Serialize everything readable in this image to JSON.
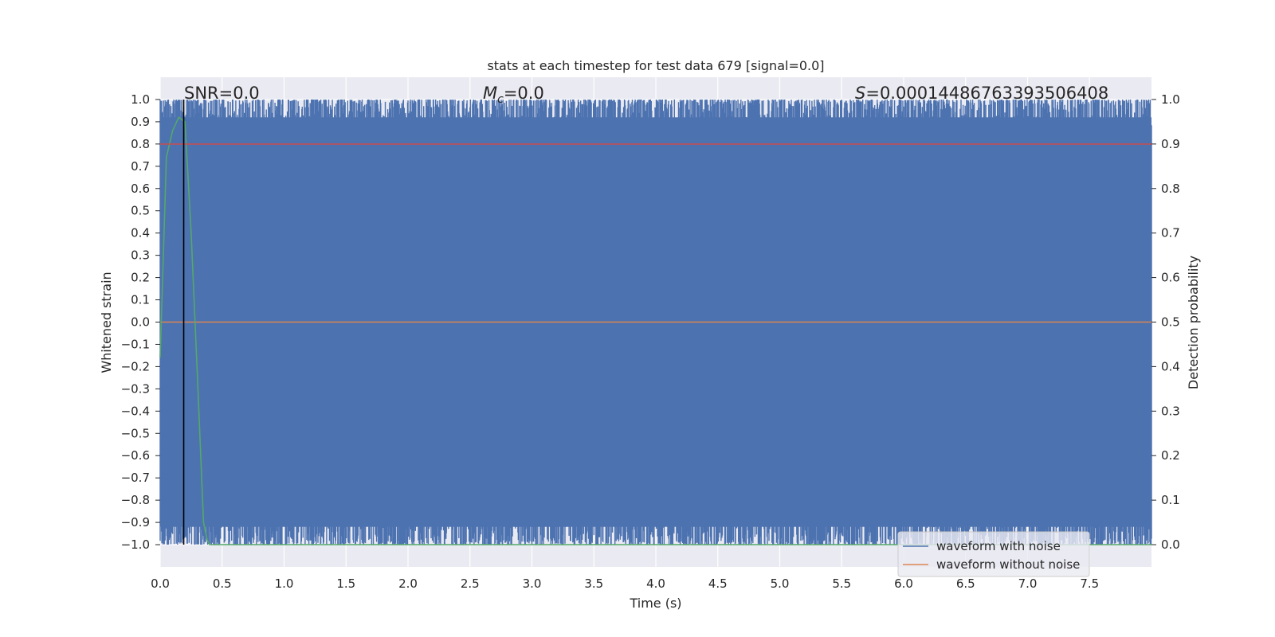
{
  "chart_data": {
    "type": "line",
    "title": "stats at each timestep for test data 679 [signal=0.0]",
    "xlabel": "Time (s)",
    "ylabel": "Whitened strain",
    "ylabel_right": "Detection probability",
    "xlim": [
      0.0,
      8.0
    ],
    "ylim": [
      -1.1,
      1.1
    ],
    "ylim_right": [
      -0.05,
      1.05
    ],
    "xticks": [
      "0.0",
      "0.5",
      "1.0",
      "1.5",
      "2.0",
      "2.5",
      "3.0",
      "3.5",
      "4.0",
      "4.5",
      "5.0",
      "5.5",
      "6.0",
      "6.5",
      "7.0",
      "7.5"
    ],
    "yticks": [
      "1.0",
      "0.9",
      "0.8",
      "0.7",
      "0.6",
      "0.5",
      "0.4",
      "0.3",
      "0.2",
      "0.1",
      "0.0",
      "−0.1",
      "−0.2",
      "−0.3",
      "−0.4",
      "−0.5",
      "−0.6",
      "−0.7",
      "−0.8",
      "−0.9",
      "−1.0"
    ],
    "yticks_right": [
      "1.0",
      "0.9",
      "0.8",
      "0.7",
      "0.6",
      "0.5",
      "0.4",
      "0.3",
      "0.2",
      "0.1",
      "0.0"
    ],
    "grid": true,
    "legend_placement": "lower-right",
    "annotations": {
      "snr": "SNR=0.0",
      "mc_symbol": "M",
      "mc_sub": "c",
      "mc_value": "=0.0",
      "s_symbol": "S",
      "s_value": "=0.00014486763393506408"
    },
    "series": [
      {
        "name": "waveform with noise",
        "color": "#4c72b0",
        "axis": "left",
        "description": "noise filling roughly -1.0 to 1.0 across the full time range"
      },
      {
        "name": "waveform without noise",
        "color": "#dd8452",
        "axis": "left",
        "x": [
          0.0,
          8.0
        ],
        "values": [
          0.0,
          0.0
        ]
      },
      {
        "color": "#55a868",
        "axis": "right",
        "x": [
          0.0,
          0.05,
          0.1,
          0.15,
          0.2,
          0.25,
          0.3,
          0.35,
          0.38,
          0.4,
          1.0,
          2.0,
          4.0,
          6.0,
          8.0
        ],
        "values": [
          0.42,
          0.87,
          0.93,
          0.96,
          0.95,
          0.7,
          0.38,
          0.05,
          0.01,
          0.0,
          0.0,
          0.0,
          0.0,
          0.0,
          0.0
        ]
      },
      {
        "color": "#c44e52",
        "axis": "right",
        "x": [
          0.0,
          8.0
        ],
        "values": [
          0.9,
          0.9
        ]
      }
    ],
    "vline": {
      "x": 0.19,
      "color": "#000000"
    }
  }
}
